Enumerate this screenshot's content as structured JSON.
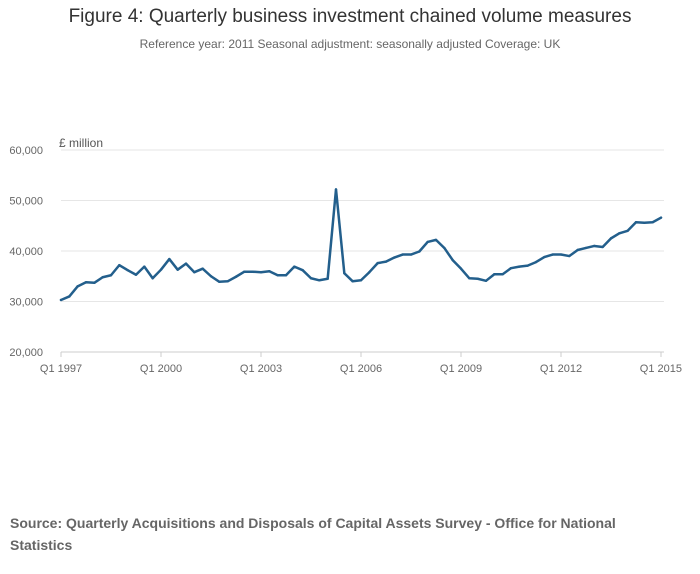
{
  "chart_data": {
    "type": "line",
    "title": "Figure 4: Quarterly business investment chained volume measures",
    "subtitle": "Reference year: 2011 Seasonal adjustment: seasonally adjusted Coverage: UK",
    "ylabel": "£ million",
    "ylim": [
      20000,
      60000
    ],
    "yticks": [
      20000,
      30000,
      40000,
      50000,
      60000
    ],
    "ytick_labels": [
      "20,000",
      "30,000",
      "40,000",
      "50,000",
      "60,000"
    ],
    "xticks": [
      "Q1 1997",
      "Q1 2000",
      "Q1 2003",
      "Q1 2006",
      "Q1 2009",
      "Q1 2012",
      "Q1 2015"
    ],
    "grid": true,
    "color": "#235f8c",
    "x": [
      "Q1 1997",
      "Q2 1997",
      "Q3 1997",
      "Q4 1997",
      "Q1 1998",
      "Q2 1998",
      "Q3 1998",
      "Q4 1998",
      "Q1 1999",
      "Q2 1999",
      "Q3 1999",
      "Q4 1999",
      "Q1 2000",
      "Q2 2000",
      "Q3 2000",
      "Q4 2000",
      "Q1 2001",
      "Q2 2001",
      "Q3 2001",
      "Q4 2001",
      "Q1 2002",
      "Q2 2002",
      "Q3 2002",
      "Q4 2002",
      "Q1 2003",
      "Q2 2003",
      "Q3 2003",
      "Q4 2003",
      "Q1 2004",
      "Q2 2004",
      "Q3 2004",
      "Q4 2004",
      "Q1 2005",
      "Q2 2005",
      "Q3 2005",
      "Q4 2005",
      "Q1 2006",
      "Q2 2006",
      "Q3 2006",
      "Q4 2006",
      "Q1 2007",
      "Q2 2007",
      "Q3 2007",
      "Q4 2007",
      "Q1 2008",
      "Q2 2008",
      "Q3 2008",
      "Q4 2008",
      "Q1 2009",
      "Q2 2009",
      "Q3 2009",
      "Q4 2009",
      "Q1 2010",
      "Q2 2010",
      "Q3 2010",
      "Q4 2010",
      "Q1 2011",
      "Q2 2011",
      "Q3 2011",
      "Q4 2011",
      "Q1 2012",
      "Q2 2012",
      "Q3 2012",
      "Q4 2012",
      "Q1 2013",
      "Q2 2013",
      "Q3 2013",
      "Q4 2013",
      "Q1 2014",
      "Q2 2014",
      "Q3 2014",
      "Q4 2014",
      "Q1 2015"
    ],
    "values": [
      30300,
      31000,
      33000,
      33800,
      33700,
      34800,
      35200,
      37200,
      36200,
      35300,
      36900,
      34600,
      36300,
      38400,
      36300,
      37500,
      35800,
      36500,
      35000,
      33900,
      34000,
      34900,
      35900,
      35900,
      35800,
      36000,
      35200,
      35200,
      36900,
      36200,
      34600,
      34200,
      34500,
      52200,
      35600,
      34000,
      34200,
      35800,
      37600,
      37900,
      38700,
      39300,
      39300,
      39900,
      41800,
      42200,
      40600,
      38200,
      36500,
      34600,
      34500,
      34100,
      35400,
      35400,
      36600,
      36900,
      37100,
      37800,
      38800,
      39300,
      39300,
      39000,
      40200,
      40600,
      41000,
      40800,
      42500,
      43500,
      44000,
      45700,
      45600,
      45700,
      46600
    ]
  },
  "source": "Source: Quarterly Acquisitions and Disposals of Capital Assets Survey - Office for National Statistics"
}
